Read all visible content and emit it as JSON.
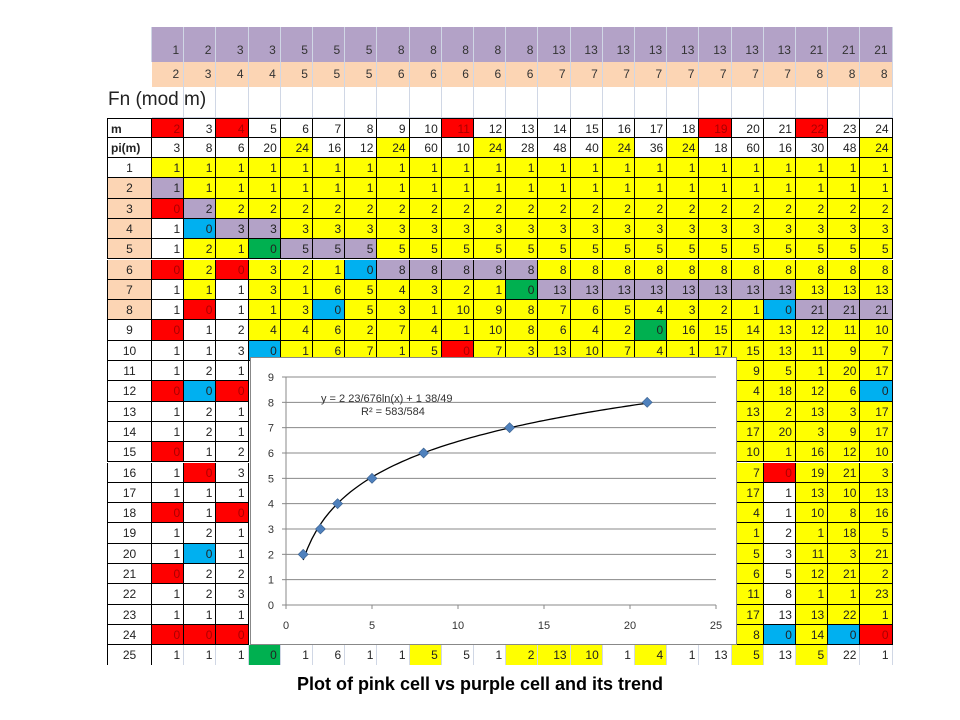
{
  "colors": {
    "Y": "#ffff00",
    "P": "#b3a2c7",
    "R": "#ff0000",
    "B": "#00b0f0",
    "G": "#00b050",
    "W": "#ffffff",
    "K": "#fcd5b4"
  },
  "top_rows": {
    "purple": [
      1,
      2,
      3,
      3,
      5,
      5,
      5,
      8,
      8,
      8,
      8,
      8,
      13,
      13,
      13,
      13,
      13,
      13,
      13,
      13,
      21,
      21,
      21
    ],
    "pink": [
      2,
      3,
      4,
      4,
      5,
      5,
      5,
      6,
      6,
      6,
      6,
      6,
      7,
      7,
      7,
      7,
      7,
      7,
      7,
      7,
      8,
      8,
      8
    ]
  },
  "title": "Fn (mod m)",
  "table": {
    "m_label": "m",
    "pi_label": "pi(m)",
    "m": [
      2,
      3,
      4,
      5,
      6,
      7,
      8,
      9,
      10,
      11,
      12,
      13,
      14,
      15,
      16,
      17,
      18,
      19,
      20,
      21,
      22,
      23,
      24
    ],
    "m_colors": "RWRWWWWWWRWWWWWWWRWWRWW",
    "pi": [
      3,
      8,
      6,
      20,
      24,
      16,
      12,
      24,
      60,
      10,
      24,
      28,
      48,
      40,
      24,
      36,
      24,
      18,
      60,
      16,
      30,
      48,
      24
    ],
    "pi_colors": "WWWWYWWYWWYWWWYWYWWWWWY",
    "row_label_colors": "WKKKKKKKWWWWWWWWWWWWWWWWW",
    "rows": [
      {
        "n": 1,
        "values": [
          1,
          1,
          1,
          1,
          1,
          1,
          1,
          1,
          1,
          1,
          1,
          1,
          1,
          1,
          1,
          1,
          1,
          1,
          1,
          1,
          1,
          1,
          1
        ],
        "colors": "YYYYYYYYYYYYYYYYYYYYYYY"
      },
      {
        "n": 2,
        "values": [
          1,
          1,
          1,
          1,
          1,
          1,
          1,
          1,
          1,
          1,
          1,
          1,
          1,
          1,
          1,
          1,
          1,
          1,
          1,
          1,
          1,
          1,
          1
        ],
        "colors": "PYYYYYYYYYYYYYYYYYYYYYY"
      },
      {
        "n": 3,
        "values": [
          0,
          2,
          2,
          2,
          2,
          2,
          2,
          2,
          2,
          2,
          2,
          2,
          2,
          2,
          2,
          2,
          2,
          2,
          2,
          2,
          2,
          2,
          2
        ],
        "colors": "RPYYYYYYYYYYYYYYYYYYYYY"
      },
      {
        "n": 4,
        "values": [
          1,
          0,
          3,
          3,
          3,
          3,
          3,
          3,
          3,
          3,
          3,
          3,
          3,
          3,
          3,
          3,
          3,
          3,
          3,
          3,
          3,
          3,
          3
        ],
        "colors": "WBPPYYYYYYYYYYYYYYYYYYY"
      },
      {
        "n": 5,
        "values": [
          1,
          2,
          1,
          0,
          5,
          5,
          5,
          5,
          5,
          5,
          5,
          5,
          5,
          5,
          5,
          5,
          5,
          5,
          5,
          5,
          5,
          5,
          5
        ],
        "colors": "WYYGPPPYYYYYYYYYYYYYYYY"
      },
      {
        "n": 6,
        "values": [
          0,
          2,
          0,
          3,
          2,
          1,
          0,
          8,
          8,
          8,
          8,
          8,
          8,
          8,
          8,
          8,
          8,
          8,
          8,
          8,
          8,
          8,
          8
        ],
        "colors": "RYRYYYBPPPPPYYYYYYYYYYY"
      },
      {
        "n": 7,
        "values": [
          1,
          1,
          1,
          3,
          1,
          6,
          5,
          4,
          3,
          2,
          1,
          0,
          13,
          13,
          13,
          13,
          13,
          13,
          13,
          13,
          13,
          13,
          13
        ],
        "colors": "WYWYYYYYYYYGPPPPPPPPYYY"
      },
      {
        "n": 8,
        "values": [
          1,
          0,
          1,
          1,
          3,
          0,
          5,
          3,
          1,
          10,
          9,
          8,
          7,
          6,
          5,
          4,
          3,
          2,
          1,
          0,
          21,
          21,
          21
        ],
        "colors": "WRWYYBYYYYYYYYYYYYYBPPP"
      },
      {
        "n": 9,
        "values": [
          0,
          1,
          2,
          4,
          4,
          6,
          2,
          7,
          4,
          1,
          10,
          8,
          6,
          4,
          2,
          0,
          16,
          15,
          14,
          13,
          12,
          11,
          10
        ],
        "colors": "RWWYYYYYYYYYYYYGYYYYYYY"
      },
      {
        "n": 10,
        "values": [
          1,
          1,
          3,
          0,
          1,
          6,
          7,
          1,
          5,
          0,
          7,
          3,
          13,
          10,
          7,
          4,
          1,
          17,
          15,
          13,
          11,
          9,
          7
        ],
        "colors": "WWWBYYYYYRYYYYYYYYYYYYY"
      },
      {
        "n": 11,
        "values": [
          1,
          2,
          1,
          null,
          null,
          null,
          null,
          null,
          null,
          null,
          null,
          null,
          null,
          null,
          null,
          null,
          null,
          null,
          9,
          5,
          1,
          20,
          17
        ],
        "colors": "WWWYYYYYYYYYYYYYYYYYYYY"
      },
      {
        "n": 12,
        "values": [
          0,
          0,
          0,
          null,
          null,
          null,
          null,
          null,
          null,
          null,
          null,
          null,
          null,
          null,
          null,
          null,
          null,
          null,
          4,
          18,
          12,
          6,
          0
        ],
        "colors": "RBRYYYYYYYYYYYYYYYYYYYB"
      },
      {
        "n": 13,
        "values": [
          1,
          2,
          1,
          null,
          null,
          null,
          null,
          null,
          null,
          null,
          null,
          null,
          null,
          null,
          null,
          null,
          null,
          null,
          13,
          2,
          13,
          3,
          17
        ],
        "colors": "WWWYYYYYYYYYYYYYYYYYYYY"
      },
      {
        "n": 14,
        "values": [
          1,
          2,
          1,
          null,
          null,
          null,
          null,
          null,
          null,
          null,
          null,
          null,
          null,
          null,
          null,
          null,
          null,
          null,
          17,
          20,
          3,
          9,
          17
        ],
        "colors": "WWWYYYYYYYYYYYYYYYYYYYY"
      },
      {
        "n": 15,
        "values": [
          0,
          1,
          2,
          null,
          null,
          null,
          null,
          null,
          null,
          null,
          null,
          null,
          null,
          null,
          null,
          null,
          null,
          null,
          10,
          1,
          16,
          12,
          10
        ],
        "colors": "RWWYYYYYYYYYYYYYYYYYYYY"
      },
      {
        "n": 16,
        "values": [
          1,
          0,
          3,
          null,
          null,
          null,
          null,
          null,
          null,
          null,
          null,
          null,
          null,
          null,
          null,
          null,
          null,
          null,
          7,
          0,
          19,
          21,
          3
        ],
        "colors": "WRWYYYYYYYYYYYYYYYYRYYY"
      },
      {
        "n": 17,
        "values": [
          1,
          1,
          1,
          null,
          null,
          null,
          null,
          null,
          null,
          null,
          null,
          null,
          null,
          null,
          null,
          null,
          null,
          null,
          17,
          1,
          13,
          10,
          13
        ],
        "colors": "WWWYYYYYYYYYYYYYYYYWYYY"
      },
      {
        "n": 18,
        "values": [
          0,
          1,
          0,
          null,
          null,
          null,
          null,
          null,
          null,
          null,
          null,
          null,
          null,
          null,
          null,
          null,
          null,
          null,
          4,
          1,
          10,
          8,
          16
        ],
        "colors": "RWRYYYYYYYYYYYYYYYYWYYY"
      },
      {
        "n": 19,
        "values": [
          1,
          2,
          1,
          null,
          null,
          null,
          null,
          null,
          null,
          null,
          null,
          null,
          null,
          null,
          null,
          null,
          null,
          null,
          1,
          2,
          1,
          18,
          5
        ],
        "colors": "WWWYYYYYYYYYYYYYYYYWYYY"
      },
      {
        "n": 20,
        "values": [
          1,
          0,
          1,
          null,
          null,
          null,
          null,
          null,
          null,
          null,
          null,
          null,
          null,
          null,
          null,
          null,
          null,
          null,
          5,
          3,
          11,
          3,
          21
        ],
        "colors": "WBWYYYYYYYYYYYYYYYYWYYY"
      },
      {
        "n": 21,
        "values": [
          0,
          2,
          2,
          null,
          null,
          null,
          null,
          null,
          null,
          null,
          null,
          null,
          null,
          null,
          null,
          null,
          null,
          null,
          6,
          5,
          12,
          21,
          2
        ],
        "colors": "RWWYYYYYYYYYYYYYYYYWYYY"
      },
      {
        "n": 22,
        "values": [
          1,
          2,
          3,
          null,
          null,
          null,
          null,
          null,
          null,
          null,
          null,
          null,
          null,
          null,
          null,
          null,
          null,
          null,
          11,
          8,
          1,
          1,
          23
        ],
        "colors": "WWWYYYYYYYYYYYYYYYYWYYY"
      },
      {
        "n": 23,
        "values": [
          1,
          1,
          1,
          null,
          null,
          null,
          null,
          null,
          null,
          null,
          null,
          null,
          null,
          null,
          null,
          null,
          null,
          null,
          17,
          13,
          13,
          22,
          1
        ],
        "colors": "WWWYYYYYYYYYYYYYYYYWYYY"
      },
      {
        "n": 24,
        "values": [
          0,
          0,
          0,
          null,
          null,
          null,
          null,
          null,
          null,
          null,
          null,
          null,
          null,
          null,
          null,
          null,
          null,
          null,
          8,
          0,
          14,
          0,
          0
        ],
        "colors": "RRRYYYYYYYYYYYYYYYYBYBR"
      },
      {
        "n": 25,
        "values": [
          1,
          1,
          1,
          0,
          1,
          6,
          1,
          1,
          5,
          5,
          1,
          2,
          13,
          10,
          1,
          4,
          1,
          13,
          5,
          13,
          5,
          22,
          1
        ],
        "colors": "WWWGWWWWYWWYYYWYWWYWYWW"
      }
    ]
  },
  "chart_data": {
    "type": "scatter",
    "x": [
      1,
      2,
      3,
      5,
      8,
      13,
      21
    ],
    "y": [
      2,
      3,
      4,
      5,
      6,
      7,
      8
    ],
    "marker_color": "#4f81bd",
    "xlim": [
      0,
      25
    ],
    "ylim": [
      0,
      9
    ],
    "xticks": [
      0,
      5,
      10,
      15,
      20,
      25
    ],
    "yticks": [
      0,
      1,
      2,
      3,
      4,
      5,
      6,
      7,
      8,
      9
    ],
    "grid": "horizontal",
    "trendline": {
      "type": "logarithmic",
      "a": 2.034,
      "b": 1.7755,
      "x_range": [
        1,
        21
      ]
    },
    "equation": "y = 2  23/676ln(x) + 1  38/49",
    "r_squared": "R² =  583/584"
  },
  "caption": "Plot of pink cell vs purple cell and its trend"
}
